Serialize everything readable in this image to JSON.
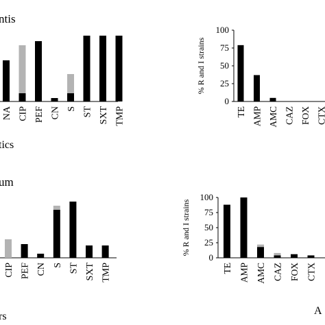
{
  "texts": {
    "top_title_fragment": "ntis",
    "mid_label_fragment": "tics",
    "lower_title_fragment": "um",
    "bottom_label_fragment": "rs",
    "corner_fragment": "A",
    "ylabel": "% R and I strains"
  },
  "colors": {
    "resistant": "#000000",
    "intermediate": "#b3b3b3",
    "axis": "#000000"
  },
  "chart_data": [
    {
      "type": "bar",
      "stacked": true,
      "categories": [
        "NA",
        "CIP",
        "PEF",
        "CN",
        "S",
        "ST",
        "SXT",
        "TMP"
      ],
      "series": [
        {
          "key": "resistant",
          "values": [
            60,
            12,
            88,
            5,
            12,
            96,
            96,
            96
          ]
        },
        {
          "key": "intermediate",
          "values": [
            0,
            70,
            0,
            0,
            28,
            0,
            0,
            0
          ]
        }
      ],
      "ylim": [
        0,
        100
      ],
      "tick_labels": [
        "NA",
        "CIP",
        "PEF",
        "CN",
        "S",
        "ST",
        "SXT",
        "TMP"
      ]
    },
    {
      "type": "bar",
      "stacked": true,
      "categories": [
        "TE",
        "AMP",
        "AMC",
        "CAZ",
        "FOX",
        "CTX"
      ],
      "series": [
        {
          "key": "resistant",
          "values": [
            79,
            37,
            5,
            0,
            0,
            0
          ]
        },
        {
          "key": "intermediate",
          "values": [
            0,
            0,
            0,
            0,
            0,
            0
          ]
        }
      ],
      "ylim": [
        0,
        100
      ],
      "yticks": [
        0,
        25,
        50,
        75,
        100
      ],
      "ylabel": "% R and I strains"
    },
    {
      "type": "bar",
      "stacked": true,
      "categories": [
        "CIP",
        "PEF",
        "CN",
        "S",
        "ST",
        "SXT",
        "TMP"
      ],
      "series": [
        {
          "key": "resistant",
          "values": [
            0,
            20,
            6,
            70,
            82,
            18,
            18
          ]
        },
        {
          "key": "intermediate",
          "values": [
            27,
            0,
            0,
            6,
            0,
            0,
            0
          ]
        }
      ],
      "ylim": [
        0,
        100
      ]
    },
    {
      "type": "bar",
      "stacked": true,
      "categories": [
        "TE",
        "AMP",
        "AMC",
        "CAZ",
        "FOX",
        "CTX"
      ],
      "series": [
        {
          "key": "resistant",
          "values": [
            88,
            100,
            18,
            4,
            6,
            4
          ]
        },
        {
          "key": "intermediate",
          "values": [
            0,
            0,
            4,
            4,
            0,
            0
          ]
        }
      ],
      "ylim": [
        0,
        100
      ],
      "yticks": [
        0,
        25,
        50,
        75,
        100
      ],
      "ylabel": "% R and I strains"
    }
  ]
}
